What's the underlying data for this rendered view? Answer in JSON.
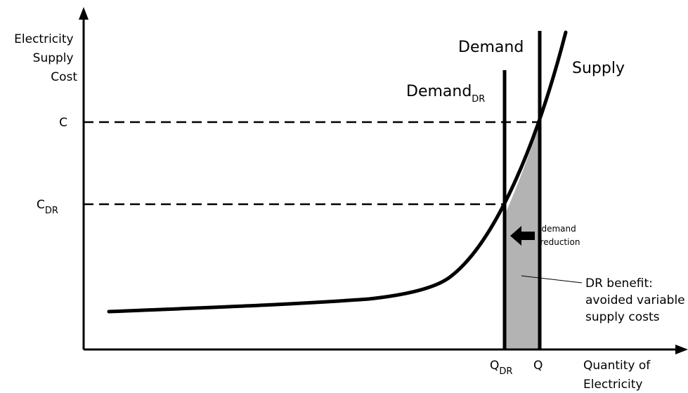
{
  "diagram": {
    "y_axis_label": [
      "Electricity",
      "Supply",
      "Cost"
    ],
    "x_axis_label": [
      "Quantity of",
      "Electricity"
    ],
    "curves": {
      "supply": "Supply",
      "demand": "Demand",
      "demand_dr": {
        "base": "Demand",
        "sub": "DR"
      }
    },
    "y_ticks": {
      "c": "C",
      "c_dr": {
        "base": "C",
        "sub": "DR"
      }
    },
    "x_ticks": {
      "q": "Q",
      "q_dr": {
        "base": "Q",
        "sub": "DR"
      }
    },
    "annotations": {
      "demand_reduction": [
        "demand",
        "reduction"
      ],
      "dr_benefit": [
        "DR benefit:",
        "avoided variable",
        "supply costs"
      ]
    },
    "colors": {
      "line": "#000000",
      "benefit_fill": "#b3b3b3",
      "background": "#ffffff"
    }
  }
}
